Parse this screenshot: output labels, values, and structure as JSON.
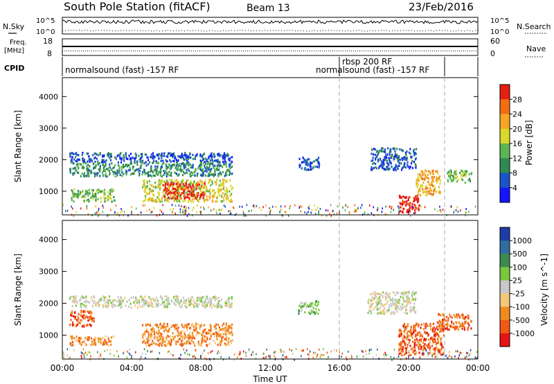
{
  "header": {
    "station": "South Pole Station (fitACF)",
    "beam": "Beam 13",
    "date": "23/Feb/2016"
  },
  "top_panels": {
    "n_sky_label": "N.Sky",
    "n_search_label": "N.Search",
    "noise_ticks_left": [
      "10^5",
      "10^0"
    ],
    "noise_ticks_right": [
      "10^5",
      "10^0"
    ],
    "freq_label": "Freq.",
    "freq_unit": "[MHz]",
    "freq_ticks": [
      "18",
      "8"
    ],
    "nave_label": "Nave",
    "nave_ticks": [
      "60",
      "0"
    ],
    "cpid_label": "CPID",
    "cpid_segments": [
      "normalsound (fast) -157 RF",
      "rbsp 200 RF",
      "normalsound (fast) -157 RF"
    ]
  },
  "chart_data": [
    {
      "type": "heatmap",
      "title": "",
      "xlabel": "",
      "ylabel": "Slant Range [km]",
      "x_ticks": [
        "00:00",
        "04:00",
        "08:00",
        "12:00",
        "16:00",
        "20:00",
        "00:00"
      ],
      "y_ticks": [
        1000,
        2000,
        3000,
        4000
      ],
      "ylim": [
        250,
        4600
      ],
      "colorbar_label": "Power [dB]",
      "colorbar_ticks": [
        4,
        8,
        12,
        16,
        20,
        24,
        28
      ],
      "colors": [
        "#1414ff",
        "#1b54c8",
        "#2e8a50",
        "#5ab552",
        "#d8d82a",
        "#f5a623",
        "#f26d14",
        "#e61e14"
      ],
      "grid": false,
      "echo_regions": [
        {
          "t_start": 0.4,
          "t_end": 9.8,
          "r_min": 1950,
          "r_max": 2250,
          "level": 1
        },
        {
          "t_start": 0.4,
          "t_end": 9.8,
          "r_min": 1500,
          "r_max": 1950,
          "level": 2
        },
        {
          "t_start": 0.4,
          "t_end": 3.0,
          "r_min": 700,
          "r_max": 1100,
          "level": 3
        },
        {
          "t_start": 4.6,
          "t_end": 9.8,
          "r_min": 700,
          "r_max": 1400,
          "level": 4
        },
        {
          "t_start": 5.8,
          "t_end": 8.2,
          "r_min": 800,
          "r_max": 1300,
          "level": 7
        },
        {
          "t_start": 13.6,
          "t_end": 14.8,
          "r_min": 1700,
          "r_max": 2100,
          "level": 1
        },
        {
          "t_start": 17.8,
          "t_end": 20.4,
          "r_min": 1700,
          "r_max": 2400,
          "level": 1
        },
        {
          "t_start": 19.4,
          "t_end": 20.6,
          "r_min": 300,
          "r_max": 900,
          "level": 7
        },
        {
          "t_start": 20.4,
          "t_end": 21.8,
          "r_min": 900,
          "r_max": 1700,
          "level": 5
        },
        {
          "t_start": 22.2,
          "t_end": 23.6,
          "r_min": 1300,
          "r_max": 1700,
          "level": 3
        }
      ]
    },
    {
      "type": "heatmap",
      "title": "",
      "xlabel": "Time UT",
      "ylabel": "Slant Range [km]",
      "x_ticks": [
        "00:00",
        "04:00",
        "08:00",
        "12:00",
        "16:00",
        "20:00",
        "00:00"
      ],
      "y_ticks": [
        1000,
        2000,
        3000,
        4000
      ],
      "ylim": [
        250,
        4600
      ],
      "colorbar_label": "Velocity [m s^-1]",
      "colorbar_ticks": [
        1000,
        500,
        100,
        25,
        -25,
        -100,
        -500,
        -1000
      ],
      "colors": [
        "#1e3ca8",
        "#2e6ea0",
        "#3c8c50",
        "#78c83c",
        "#c8c8c8",
        "#f5c878",
        "#f08c1e",
        "#f05a14",
        "#e61414"
      ],
      "grid": false,
      "echo_regions": [
        {
          "t_start": 0.4,
          "t_end": 9.8,
          "r_min": 1900,
          "r_max": 2250,
          "level": 4
        },
        {
          "t_start": 0.4,
          "t_end": 1.8,
          "r_min": 1300,
          "r_max": 1800,
          "level": 7
        },
        {
          "t_start": 0.4,
          "t_end": 3.0,
          "r_min": 700,
          "r_max": 1000,
          "level": 6
        },
        {
          "t_start": 4.6,
          "t_end": 9.8,
          "r_min": 700,
          "r_max": 1400,
          "level": 6
        },
        {
          "t_start": 13.6,
          "t_end": 14.8,
          "r_min": 1700,
          "r_max": 2100,
          "level": 3
        },
        {
          "t_start": 17.6,
          "t_end": 20.4,
          "r_min": 1700,
          "r_max": 2400,
          "level": 4
        },
        {
          "t_start": 19.4,
          "t_end": 22.0,
          "r_min": 400,
          "r_max": 1400,
          "level": 7
        },
        {
          "t_start": 21.6,
          "t_end": 23.6,
          "r_min": 1200,
          "r_max": 1700,
          "level": 7
        }
      ]
    }
  ]
}
